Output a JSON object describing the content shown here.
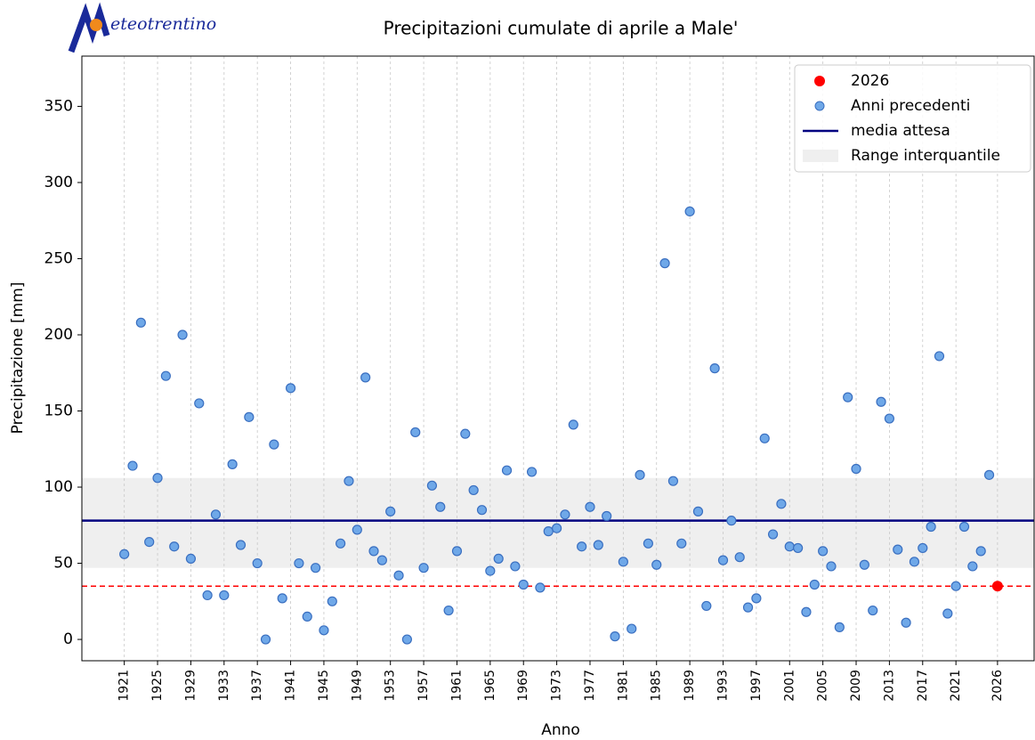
{
  "chart_data": {
    "type": "scatter",
    "logo": "eteotrentino",
    "title": "Precipitazioni cumulate di aprile a Male'",
    "xlabel": "Anno",
    "ylabel": "Precipitazione [mm]",
    "xlim": [
      1915.9,
      2030.4
    ],
    "ylim": [
      -14,
      383
    ],
    "xticks": [
      1921,
      1925,
      1929,
      1933,
      1937,
      1941,
      1945,
      1949,
      1953,
      1957,
      1961,
      1965,
      1969,
      1973,
      1977,
      1981,
      1985,
      1989,
      1993,
      1997,
      2001,
      2005,
      2009,
      2013,
      2017,
      2021,
      2026
    ],
    "yticks": [
      0,
      50,
      100,
      150,
      200,
      250,
      300,
      350
    ],
    "grid": true,
    "legend": "upper right",
    "series": [
      {
        "name": "2026",
        "color": "#ff0000",
        "x": [
          2026
        ],
        "values": [
          35
        ]
      },
      {
        "name": "Anni precedenti",
        "color": "#6fa8e8",
        "x": [
          1921,
          1922,
          1923,
          1924,
          1925,
          1926,
          1927,
          1928,
          1929,
          1930,
          1931,
          1932,
          1933,
          1934,
          1935,
          1936,
          1937,
          1938,
          1939,
          1940,
          1941,
          1942,
          1943,
          1944,
          1945,
          1946,
          1947,
          1948,
          1949,
          1950,
          1951,
          1952,
          1953,
          1954,
          1955,
          1956,
          1957,
          1958,
          1959,
          1960,
          1961,
          1962,
          1963,
          1964,
          1965,
          1966,
          1967,
          1968,
          1969,
          1970,
          1971,
          1972,
          1973,
          1974,
          1975,
          1976,
          1977,
          1978,
          1979,
          1980,
          1981,
          1982,
          1983,
          1984,
          1985,
          1986,
          1987,
          1988,
          1989,
          1990,
          1991,
          1992,
          1993,
          1994,
          1995,
          1996,
          1997,
          1998,
          1999,
          2000,
          2001,
          2002,
          2003,
          2004,
          2005,
          2006,
          2007,
          2008,
          2009,
          2010,
          2011,
          2012,
          2013,
          2014,
          2015,
          2016,
          2017,
          2018,
          2019,
          2020,
          2021,
          2022,
          2023,
          2024,
          2025
        ],
        "values": [
          56,
          114,
          208,
          64,
          106,
          173,
          61,
          200,
          53,
          155,
          29,
          82,
          29,
          115,
          62,
          146,
          50,
          0,
          128,
          27,
          165,
          50,
          15,
          47,
          6,
          25,
          63,
          104,
          72,
          172,
          58,
          52,
          84,
          42,
          0,
          136,
          47,
          101,
          87,
          19,
          58,
          135,
          98,
          85,
          45,
          53,
          111,
          48,
          36,
          110,
          34,
          71,
          73,
          82,
          141,
          61,
          87,
          62,
          81,
          2,
          51,
          7,
          108,
          63,
          49,
          247,
          104,
          63,
          281,
          84,
          22,
          178,
          52,
          78,
          54,
          21,
          27,
          132,
          69,
          89,
          61,
          60,
          18,
          36,
          58,
          48,
          8,
          159,
          112,
          49,
          19,
          156,
          145,
          59,
          11,
          51,
          60,
          74,
          186,
          17,
          35,
          74,
          48,
          58,
          108
        ]
      }
    ],
    "mean": {
      "name": "media attesa",
      "color": "#000080",
      "value": 78
    },
    "band": {
      "name": "Range interquantile",
      "color": "#efefef",
      "values": [
        47,
        106
      ]
    }
  }
}
